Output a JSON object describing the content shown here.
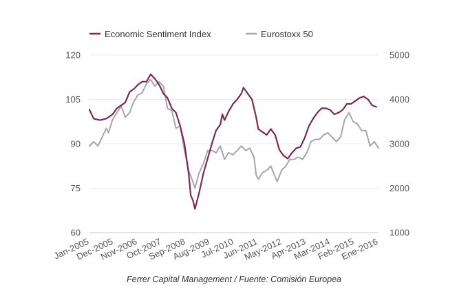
{
  "chart_data": {
    "type": "line",
    "title": "",
    "xlabel": "",
    "ylabel": "",
    "x_tick_labels": [
      "Jan-2005",
      "Dec-2005",
      "Nov-2006",
      "Oct-2007",
      "Sep-2008",
      "Aug-2009",
      "Jul-2010",
      "Jun-2011",
      "May-2012",
      "Apr-2013",
      "Mar-2014",
      "Feb-2015",
      "Ene-2016"
    ],
    "x_range": [
      "2005-01",
      "2016-06"
    ],
    "y_left": {
      "ticks": [
        "60",
        "75",
        "90",
        "105",
        "120"
      ],
      "range": [
        60,
        120
      ]
    },
    "y_right": {
      "ticks": [
        "1000",
        "2000",
        "3000",
        "4000",
        "5000"
      ],
      "range": [
        1000,
        5000
      ]
    },
    "grid": true,
    "legend_position": "top-left",
    "source": "Ferrer Capital Management / Fuente: Comisión Europea",
    "series": [
      {
        "name": "Economic Sentiment Index",
        "axis": "left",
        "color": "#7a2a4f",
        "points": [
          [
            "2005-01",
            101.5
          ],
          [
            "2005-03",
            98.5
          ],
          [
            "2005-06",
            98.0
          ],
          [
            "2005-09",
            98.5
          ],
          [
            "2005-12",
            100.0
          ],
          [
            "2006-02",
            102.0
          ],
          [
            "2006-04",
            103.0
          ],
          [
            "2006-06",
            104.0
          ],
          [
            "2006-08",
            107.5
          ],
          [
            "2006-10",
            108.5
          ],
          [
            "2006-12",
            110.0
          ],
          [
            "2007-02",
            111.0
          ],
          [
            "2007-04",
            111.0
          ],
          [
            "2007-06",
            113.5
          ],
          [
            "2007-08",
            112.0
          ],
          [
            "2007-10",
            110.0
          ],
          [
            "2007-12",
            107.0
          ],
          [
            "2008-02",
            105.5
          ],
          [
            "2008-04",
            102.0
          ],
          [
            "2008-06",
            100.5
          ],
          [
            "2008-08",
            96.0
          ],
          [
            "2008-10",
            90.0
          ],
          [
            "2008-12",
            80.0
          ],
          [
            "2009-01",
            72.5
          ],
          [
            "2009-02",
            71.0
          ],
          [
            "2009-03",
            68.0
          ],
          [
            "2009-05",
            73.5
          ],
          [
            "2009-07",
            80.0
          ],
          [
            "2009-09",
            85.0
          ],
          [
            "2009-11",
            90.0
          ],
          [
            "2010-01",
            94.5
          ],
          [
            "2010-03",
            96.5
          ],
          [
            "2010-04",
            100.0
          ],
          [
            "2010-05",
            98.0
          ],
          [
            "2010-07",
            101.0
          ],
          [
            "2010-09",
            103.5
          ],
          [
            "2010-11",
            105.0
          ],
          [
            "2011-01",
            107.0
          ],
          [
            "2011-02",
            109.0
          ],
          [
            "2011-04",
            107.0
          ],
          [
            "2011-06",
            105.0
          ],
          [
            "2011-08",
            99.0
          ],
          [
            "2011-09",
            95.0
          ],
          [
            "2011-11",
            94.0
          ],
          [
            "2012-01",
            93.0
          ],
          [
            "2012-03",
            95.0
          ],
          [
            "2012-05",
            93.0
          ],
          [
            "2012-07",
            88.0
          ],
          [
            "2012-09",
            86.0
          ],
          [
            "2012-11",
            85.0
          ],
          [
            "2013-01",
            87.0
          ],
          [
            "2013-03",
            88.5
          ],
          [
            "2013-05",
            89.0
          ],
          [
            "2013-07",
            92.0
          ],
          [
            "2013-09",
            96.0
          ],
          [
            "2013-11",
            98.5
          ],
          [
            "2014-01",
            100.5
          ],
          [
            "2014-03",
            102.0
          ],
          [
            "2014-05",
            102.0
          ],
          [
            "2014-07",
            101.5
          ],
          [
            "2014-09",
            100.0
          ],
          [
            "2014-11",
            100.5
          ],
          [
            "2015-01",
            101.5
          ],
          [
            "2015-03",
            103.5
          ],
          [
            "2015-05",
            103.5
          ],
          [
            "2015-07",
            104.5
          ],
          [
            "2015-09",
            105.5
          ],
          [
            "2015-11",
            106.0
          ],
          [
            "2016-01",
            105.0
          ],
          [
            "2016-03",
            103.0
          ],
          [
            "2016-05",
            102.5
          ]
        ]
      },
      {
        "name": "Eurostoxx 50",
        "axis": "right",
        "color": "#a6a6a6",
        "points": [
          [
            "2005-01",
            2950
          ],
          [
            "2005-03",
            3050
          ],
          [
            "2005-05",
            2950
          ],
          [
            "2005-07",
            3150
          ],
          [
            "2005-09",
            3350
          ],
          [
            "2005-10",
            3250
          ],
          [
            "2005-12",
            3550
          ],
          [
            "2006-02",
            3700
          ],
          [
            "2006-04",
            3850
          ],
          [
            "2006-06",
            3600
          ],
          [
            "2006-08",
            3700
          ],
          [
            "2006-10",
            3950
          ],
          [
            "2006-12",
            4100
          ],
          [
            "2007-02",
            4150
          ],
          [
            "2007-04",
            4350
          ],
          [
            "2007-06",
            4450
          ],
          [
            "2007-08",
            4300
          ],
          [
            "2007-10",
            4400
          ],
          [
            "2007-12",
            4300
          ],
          [
            "2008-02",
            3800
          ],
          [
            "2008-04",
            3750
          ],
          [
            "2008-06",
            3350
          ],
          [
            "2008-08",
            3400
          ],
          [
            "2008-10",
            2850
          ],
          [
            "2008-12",
            2400
          ],
          [
            "2009-02",
            2150
          ],
          [
            "2009-03",
            2000
          ],
          [
            "2009-05",
            2350
          ],
          [
            "2009-07",
            2550
          ],
          [
            "2009-09",
            2850
          ],
          [
            "2009-11",
            2850
          ],
          [
            "2010-01",
            2800
          ],
          [
            "2010-03",
            2950
          ],
          [
            "2010-05",
            2650
          ],
          [
            "2010-07",
            2800
          ],
          [
            "2010-09",
            2750
          ],
          [
            "2010-11",
            2850
          ],
          [
            "2011-01",
            2950
          ],
          [
            "2011-03",
            2850
          ],
          [
            "2011-05",
            2900
          ],
          [
            "2011-07",
            2700
          ],
          [
            "2011-08",
            2300
          ],
          [
            "2011-09",
            2200
          ],
          [
            "2011-11",
            2350
          ],
          [
            "2012-01",
            2400
          ],
          [
            "2012-03",
            2500
          ],
          [
            "2012-05",
            2250
          ],
          [
            "2012-06",
            2150
          ],
          [
            "2012-08",
            2400
          ],
          [
            "2012-10",
            2500
          ],
          [
            "2012-12",
            2650
          ],
          [
            "2013-02",
            2650
          ],
          [
            "2013-04",
            2700
          ],
          [
            "2013-06",
            2650
          ],
          [
            "2013-08",
            2800
          ],
          [
            "2013-10",
            3050
          ],
          [
            "2013-12",
            3100
          ],
          [
            "2014-02",
            3100
          ],
          [
            "2014-04",
            3200
          ],
          [
            "2014-06",
            3250
          ],
          [
            "2014-08",
            3150
          ],
          [
            "2014-10",
            3050
          ],
          [
            "2014-12",
            3150
          ],
          [
            "2015-02",
            3550
          ],
          [
            "2015-04",
            3700
          ],
          [
            "2015-06",
            3500
          ],
          [
            "2015-08",
            3450
          ],
          [
            "2015-10",
            3300
          ],
          [
            "2015-12",
            3300
          ],
          [
            "2016-02",
            2950
          ],
          [
            "2016-04",
            3050
          ],
          [
            "2016-06",
            2900
          ]
        ]
      }
    ]
  }
}
